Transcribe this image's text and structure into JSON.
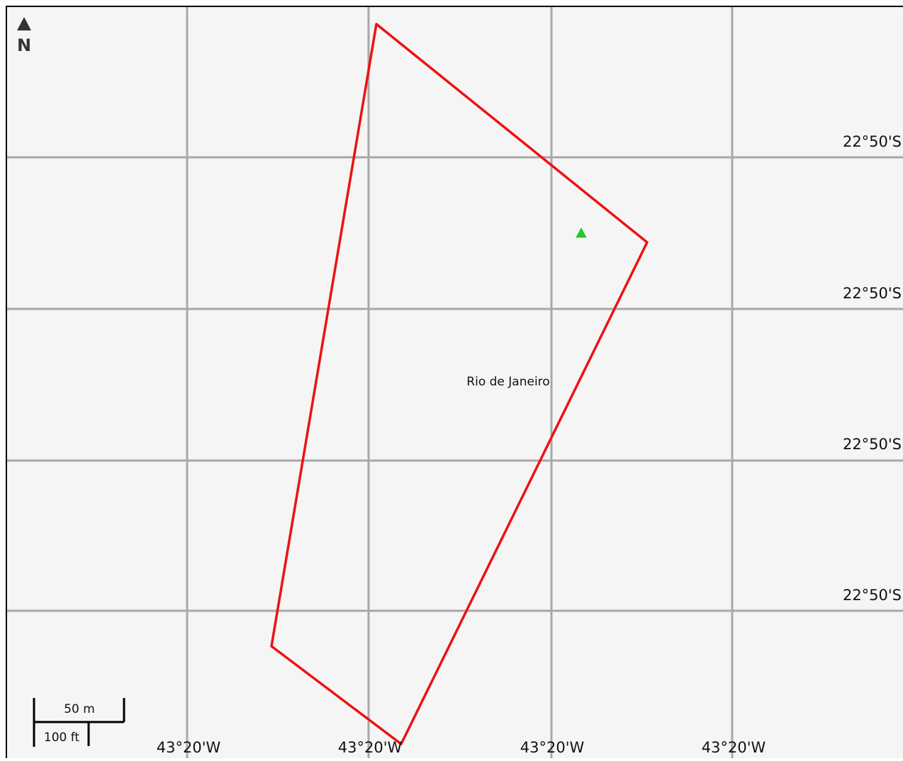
{
  "north_arrow": {
    "label": "N"
  },
  "place_label": "Rio de Janeiro",
  "latitude_labels": [
    "22°50'S",
    "22°50'S",
    "22°50'S",
    "22°50'S"
  ],
  "longitude_labels": [
    "43°20'W",
    "43°20'W",
    "43°20'W",
    "43°20'W"
  ],
  "scale_bar": {
    "metric_label": "50 m",
    "imperial_label": "100 ft"
  },
  "colors": {
    "background": "#f5f5f5",
    "grid": "#a8a8a8",
    "boundary": "#ee1111",
    "marker": "#22cc22",
    "frame": "#000000"
  }
}
